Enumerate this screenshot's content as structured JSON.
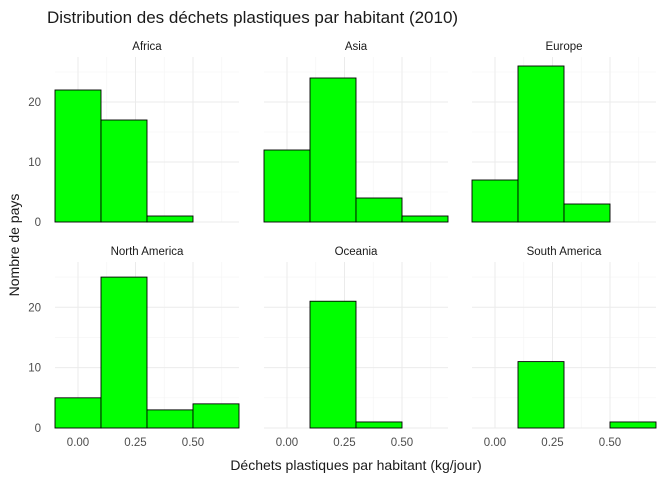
{
  "chart_data": {
    "type": "bar",
    "title": "Distribution des déchets plastiques par habitant (2010)",
    "xlabel": "Déchets plastiques par habitant (kg/jour)",
    "ylabel": "Nombre de pays",
    "bar_color": "#00ff00",
    "bar_outline": "#000000",
    "bin_edges": [
      -0.1,
      0.1,
      0.3,
      0.5,
      0.7
    ],
    "xlim": [
      -0.1,
      0.7
    ],
    "ylim": [
      0,
      27.5
    ],
    "x_ticks": [
      0.0,
      0.25,
      0.5
    ],
    "x_tick_labels": [
      "0.00",
      "0.25",
      "0.50"
    ],
    "y_ticks": [
      0,
      10,
      20
    ],
    "y_tick_labels": [
      "0",
      "10",
      "20"
    ],
    "grid": true,
    "facets": [
      {
        "name": "Africa",
        "values": [
          22,
          17,
          1,
          0
        ]
      },
      {
        "name": "Asia",
        "values": [
          12,
          24,
          4,
          1
        ]
      },
      {
        "name": "Europe",
        "values": [
          7,
          26,
          3,
          0
        ]
      },
      {
        "name": "North America",
        "values": [
          5,
          25,
          3,
          4
        ]
      },
      {
        "name": "Oceania",
        "values": [
          0,
          21,
          1,
          0
        ]
      },
      {
        "name": "South America",
        "values": [
          0,
          11,
          0,
          1
        ]
      }
    ]
  }
}
